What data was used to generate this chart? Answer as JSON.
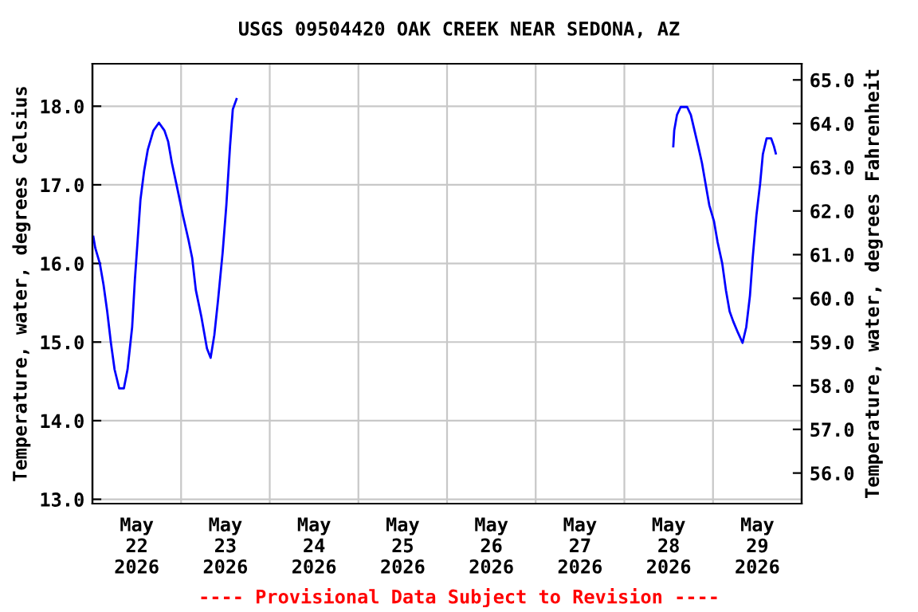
{
  "chart_data": {
    "type": "line",
    "title": "USGS 09504420 OAK CREEK NEAR SEDONA, AZ",
    "ylabel": "Temperature, water, degrees Celsius",
    "y2label": "Temperature, water, degrees Fahrenheit",
    "annotations": [
      "---- Provisional Data Subject to Revision ----"
    ],
    "x": [
      "2026-05-22T00:15",
      "2026-05-22T00:45",
      "2026-05-22T02:00",
      "2026-05-22T03:00",
      "2026-05-22T04:00",
      "2026-05-22T05:00",
      "2026-05-22T06:00",
      "2026-05-22T07:15",
      "2026-05-22T08:30",
      "2026-05-22T09:30",
      "2026-05-22T10:45",
      "2026-05-22T11:30",
      "2026-05-22T12:15",
      "2026-05-22T13:00",
      "2026-05-22T14:00",
      "2026-05-22T15:00",
      "2026-05-22T16:30",
      "2026-05-22T18:00",
      "2026-05-22T19:30",
      "2026-05-22T20:30",
      "2026-05-22T21:30",
      "2026-05-22T23:00",
      "2026-05-23T00:30",
      "2026-05-23T02:00",
      "2026-05-23T03:00",
      "2026-05-23T04:00",
      "2026-05-23T05:30",
      "2026-05-23T07:00",
      "2026-05-23T08:00",
      "2026-05-23T09:00",
      "2026-05-23T10:00",
      "2026-05-23T11:15",
      "2026-05-23T12:15",
      "2026-05-23T13:15",
      "2026-05-23T14:00",
      "2026-05-23T15:00",
      "2026-05-25T12:00",
      "2026-05-28T13:15",
      "2026-05-28T13:30",
      "2026-05-28T14:15",
      "2026-05-28T15:15",
      "2026-05-28T17:00",
      "2026-05-28T18:00",
      "2026-05-28T19:00",
      "2026-05-28T20:00",
      "2026-05-28T21:00",
      "2026-05-28T22:00",
      "2026-05-28T23:00",
      "2026-05-29T00:15",
      "2026-05-29T01:15",
      "2026-05-29T02:30",
      "2026-05-29T03:30",
      "2026-05-29T04:30",
      "2026-05-29T05:30",
      "2026-05-29T06:45",
      "2026-05-29T08:00",
      "2026-05-29T09:00",
      "2026-05-29T10:00",
      "2026-05-29T10:45",
      "2026-05-29T11:45",
      "2026-05-29T12:45",
      "2026-05-29T13:30",
      "2026-05-29T14:30",
      "2026-05-29T15:45",
      "2026-05-29T16:30",
      "2026-05-29T17:00"
    ],
    "series": [
      {
        "color": "#0000ff",
        "values": [
          16.34,
          16.2,
          16.0,
          15.73,
          15.39,
          14.99,
          14.65,
          14.41,
          14.41,
          14.65,
          15.19,
          15.8,
          16.3,
          16.81,
          17.18,
          17.45,
          17.69,
          17.79,
          17.69,
          17.55,
          17.28,
          16.95,
          16.61,
          16.3,
          16.07,
          15.66,
          15.32,
          14.92,
          14.8,
          15.09,
          15.53,
          16.14,
          16.74,
          17.49,
          17.96,
          18.09,
          null,
          17.49,
          17.69,
          17.89,
          17.99,
          17.99,
          17.89,
          17.69,
          17.49,
          17.28,
          17.01,
          16.74,
          16.54,
          16.27,
          16.0,
          15.66,
          15.39,
          15.26,
          15.12,
          14.99,
          15.19,
          15.59,
          16.07,
          16.61,
          17.01,
          17.39,
          17.59,
          17.59,
          17.49,
          17.4
        ]
      }
    ],
    "xlim": [
      "2026-05-22T00:00",
      "2026-05-30T00:00"
    ],
    "xticks": [
      {
        "value": "2026-05-22T00:00",
        "label": null
      },
      {
        "value": "2026-05-23T00:00",
        "label": null
      },
      {
        "value": "2026-05-24T00:00",
        "label": null
      },
      {
        "value": "2026-05-25T00:00",
        "label": null
      },
      {
        "value": "2026-05-26T00:00",
        "label": null
      },
      {
        "value": "2026-05-27T00:00",
        "label": null
      },
      {
        "value": "2026-05-28T00:00",
        "label": null
      },
      {
        "value": "2026-05-29T00:00",
        "label": null
      },
      {
        "value": "2026-05-30T00:00",
        "label": null
      },
      {
        "value": "2026-05-22T12:00",
        "label": "May\n22\n2026"
      },
      {
        "value": "2026-05-23T12:00",
        "label": "May\n23\n2026"
      },
      {
        "value": "2026-05-24T12:00",
        "label": "May\n24\n2026"
      },
      {
        "value": "2026-05-25T12:00",
        "label": "May\n25\n2026"
      },
      {
        "value": "2026-05-26T12:00",
        "label": "May\n26\n2026"
      },
      {
        "value": "2026-05-27T12:00",
        "label": "May\n27\n2026"
      },
      {
        "value": "2026-05-28T12:00",
        "label": "May\n28\n2026"
      },
      {
        "value": "2026-05-29T12:00",
        "label": "May\n29\n2026"
      }
    ],
    "ylim": [
      12.945,
      18.54
    ],
    "yticks": [
      {
        "value": 13,
        "label": "13.0"
      },
      {
        "value": 14,
        "label": "14.0"
      },
      {
        "value": 15,
        "label": "15.0"
      },
      {
        "value": 16,
        "label": "16.0"
      },
      {
        "value": 17,
        "label": "17.0"
      },
      {
        "value": 18,
        "label": "18.0"
      }
    ],
    "y2lim": [
      55.3,
      65.37
    ],
    "y2ticks": [
      {
        "value": 56,
        "label": "56.0"
      },
      {
        "value": 57,
        "label": "57.0"
      },
      {
        "value": 58,
        "label": "58.0"
      },
      {
        "value": 59,
        "label": "59.0"
      },
      {
        "value": 60,
        "label": "60.0"
      },
      {
        "value": 61,
        "label": "61.0"
      },
      {
        "value": 62,
        "label": "62.0"
      },
      {
        "value": 63,
        "label": "63.0"
      },
      {
        "value": 64,
        "label": "64.0"
      },
      {
        "value": 65,
        "label": "65.0"
      }
    ],
    "grid": true,
    "legend": false,
    "line_style": "solid",
    "marker": "none"
  }
}
